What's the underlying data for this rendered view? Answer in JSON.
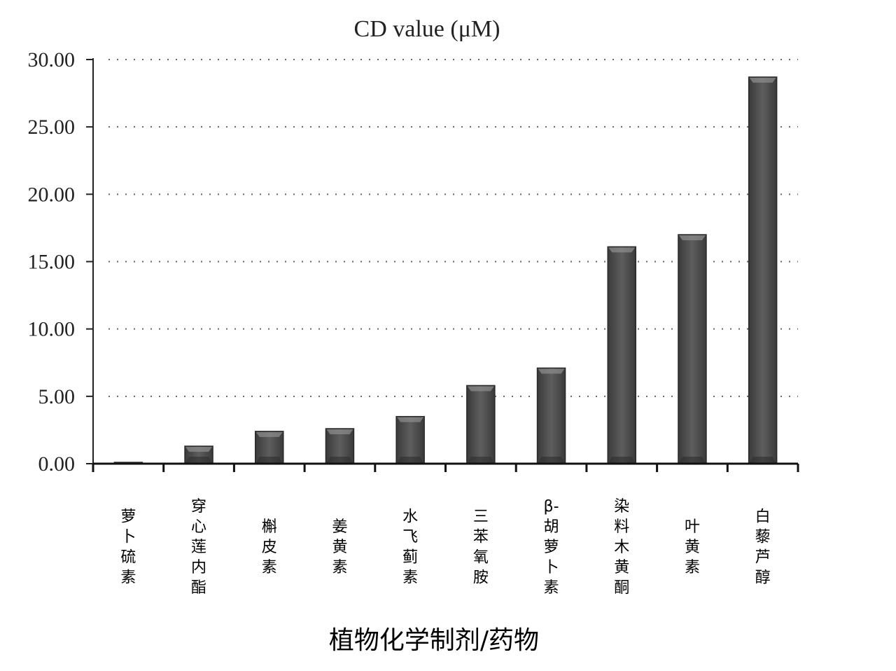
{
  "chart_data": {
    "type": "bar",
    "title": "CD value (μM)",
    "xlabel": "植物化学制剂/药物",
    "ylabel": "",
    "ylim": [
      0,
      30
    ],
    "yticks": [
      "0.00",
      "5.00",
      "10.00",
      "15.00",
      "20.00",
      "25.00",
      "30.00"
    ],
    "grid": true,
    "categories": [
      "萝卜硫素",
      "穿心莲内酯",
      "槲皮素",
      "姜黄素",
      "水飞蓟素",
      "三苯氧胺",
      "β-胡萝卜素",
      "染料木黄酮",
      "叶黄素",
      "白藜芦醇"
    ],
    "values": [
      0.1,
      1.3,
      2.4,
      2.6,
      3.5,
      5.8,
      7.1,
      16.1,
      17.0,
      28.7
    ],
    "bar_color": "#555555"
  }
}
